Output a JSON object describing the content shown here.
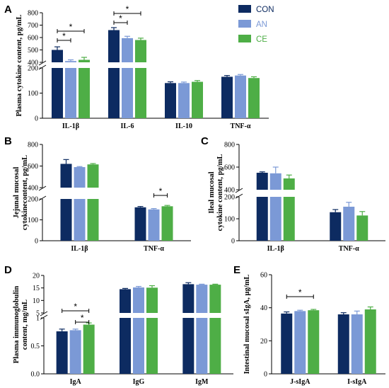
{
  "colors": {
    "CON": "#0d2b61",
    "AN": "#7b99d6",
    "CE": "#4eae46"
  },
  "legend": [
    {
      "name": "CON",
      "color": "#0d2b61"
    },
    {
      "name": "AN",
      "color": "#7b99d6"
    },
    {
      "name": "CE",
      "color": "#4eae46"
    }
  ],
  "chart_data": [
    {
      "panel": "A",
      "type": "bar",
      "ylabel": "Plasma cytokine content, pg/mL",
      "categories": [
        "IL-1β",
        "IL-6",
        "IL-10",
        "TNF-α"
      ],
      "series": [
        {
          "name": "CON",
          "values": [
            500,
            660,
            140,
            165
          ],
          "errors": [
            25,
            20,
            5,
            5
          ]
        },
        {
          "name": "AN",
          "values": [
            410,
            595,
            140,
            170
          ],
          "errors": [
            10,
            15,
            4,
            4
          ]
        },
        {
          "name": "CE",
          "values": [
            420,
            580,
            145,
            160
          ],
          "errors": [
            20,
            15,
            5,
            5
          ]
        }
      ],
      "axis_break": {
        "lower": [
          0,
          200
        ],
        "upper": [
          400,
          800
        ]
      },
      "yticks_lower": [
        "0",
        "100",
        "200"
      ],
      "yticks_upper": [
        "400",
        "500",
        "600",
        "700",
        "800"
      ],
      "significance": [
        {
          "category": 0,
          "from": "CON",
          "to": "AN",
          "label": "*"
        },
        {
          "category": 0,
          "from": "CON",
          "to": "CE",
          "label": "*"
        },
        {
          "category": 1,
          "from": "CON",
          "to": "AN",
          "label": "*"
        },
        {
          "category": 1,
          "from": "CON",
          "to": "CE",
          "label": "*"
        }
      ]
    },
    {
      "panel": "B",
      "type": "bar",
      "ylabel": "Jejunal mucosal cytokinecontent, pg/mL",
      "categories": [
        "IL-1β",
        "TNF-α"
      ],
      "series": [
        {
          "name": "CON",
          "values": [
            620,
            160
          ],
          "errors": [
            40,
            4
          ]
        },
        {
          "name": "AN",
          "values": [
            590,
            150
          ],
          "errors": [
            5,
            4
          ]
        },
        {
          "name": "CE",
          "values": [
            615,
            165
          ],
          "errors": [
            8,
            4
          ]
        }
      ],
      "axis_break": {
        "lower": [
          0,
          200
        ],
        "upper": [
          400,
          800
        ]
      },
      "yticks_lower": [
        "0",
        "100",
        "200"
      ],
      "yticks_upper": [
        "400",
        "600",
        "800"
      ],
      "significance": [
        {
          "category": 1,
          "from": "AN",
          "to": "CE",
          "label": "*"
        }
      ]
    },
    {
      "panel": "C",
      "type": "bar",
      "ylabel": "Ileal mucosal cytokine content, pg/mL",
      "categories": [
        "IL-1β",
        "TNF-α"
      ],
      "series": [
        {
          "name": "CON",
          "values": [
            550,
            130
          ],
          "errors": [
            8,
            12
          ]
        },
        {
          "name": "AN",
          "values": [
            545,
            155
          ],
          "errors": [
            55,
            20
          ]
        },
        {
          "name": "CE",
          "values": [
            500,
            115
          ],
          "errors": [
            30,
            18
          ]
        }
      ],
      "axis_break": {
        "lower": [
          0,
          200
        ],
        "upper": [
          400,
          800
        ]
      },
      "yticks_lower": [
        "0",
        "100",
        "200"
      ],
      "yticks_upper": [
        "400",
        "600",
        "800"
      ],
      "significance": []
    },
    {
      "panel": "D",
      "type": "bar",
      "ylabel": "Plasma immunoglobulin content, mg/mL",
      "categories": [
        "IgA",
        "IgG",
        "IgM"
      ],
      "series": [
        {
          "name": "CON",
          "values": [
            0.76,
            14.5,
            16.5
          ],
          "errors": [
            0.04,
            0.3,
            0.6
          ]
        },
        {
          "name": "AN",
          "values": [
            0.78,
            15.2,
            16.3
          ],
          "errors": [
            0.02,
            0.4,
            0.2
          ]
        },
        {
          "name": "CE",
          "values": [
            0.88,
            15.1,
            16.3
          ],
          "errors": [
            0.03,
            0.8,
            0.2
          ]
        }
      ],
      "axis_break": {
        "lower": [
          0,
          1
        ],
        "upper": [
          5,
          20
        ]
      },
      "yticks_lower": [
        "0.0",
        "0.5",
        "1"
      ],
      "yticks_upper": [
        "5",
        "10",
        "15",
        "20"
      ],
      "significance": [
        {
          "category": 0,
          "from": "CON",
          "to": "CE",
          "label": "*"
        },
        {
          "category": 0,
          "from": "AN",
          "to": "CE",
          "label": "*"
        }
      ]
    },
    {
      "panel": "E",
      "type": "bar",
      "ylabel": "Intestinal mucosal sIgA, µg/mL",
      "categories": [
        "J-sIgA",
        "I-sIgA"
      ],
      "ylim": [
        0,
        60
      ],
      "yticks": [
        "0",
        "20",
        "40",
        "60"
      ],
      "series": [
        {
          "name": "CON",
          "values": [
            36.5,
            36
          ],
          "errors": [
            1,
            1
          ]
        },
        {
          "name": "AN",
          "values": [
            38,
            36
          ],
          "errors": [
            0.5,
            2
          ]
        },
        {
          "name": "CE",
          "values": [
            38.5,
            39
          ],
          "errors": [
            0.5,
            1.5
          ]
        }
      ],
      "significance": [
        {
          "category": 0,
          "from": "CON",
          "to": "CE",
          "label": "*"
        }
      ]
    }
  ]
}
